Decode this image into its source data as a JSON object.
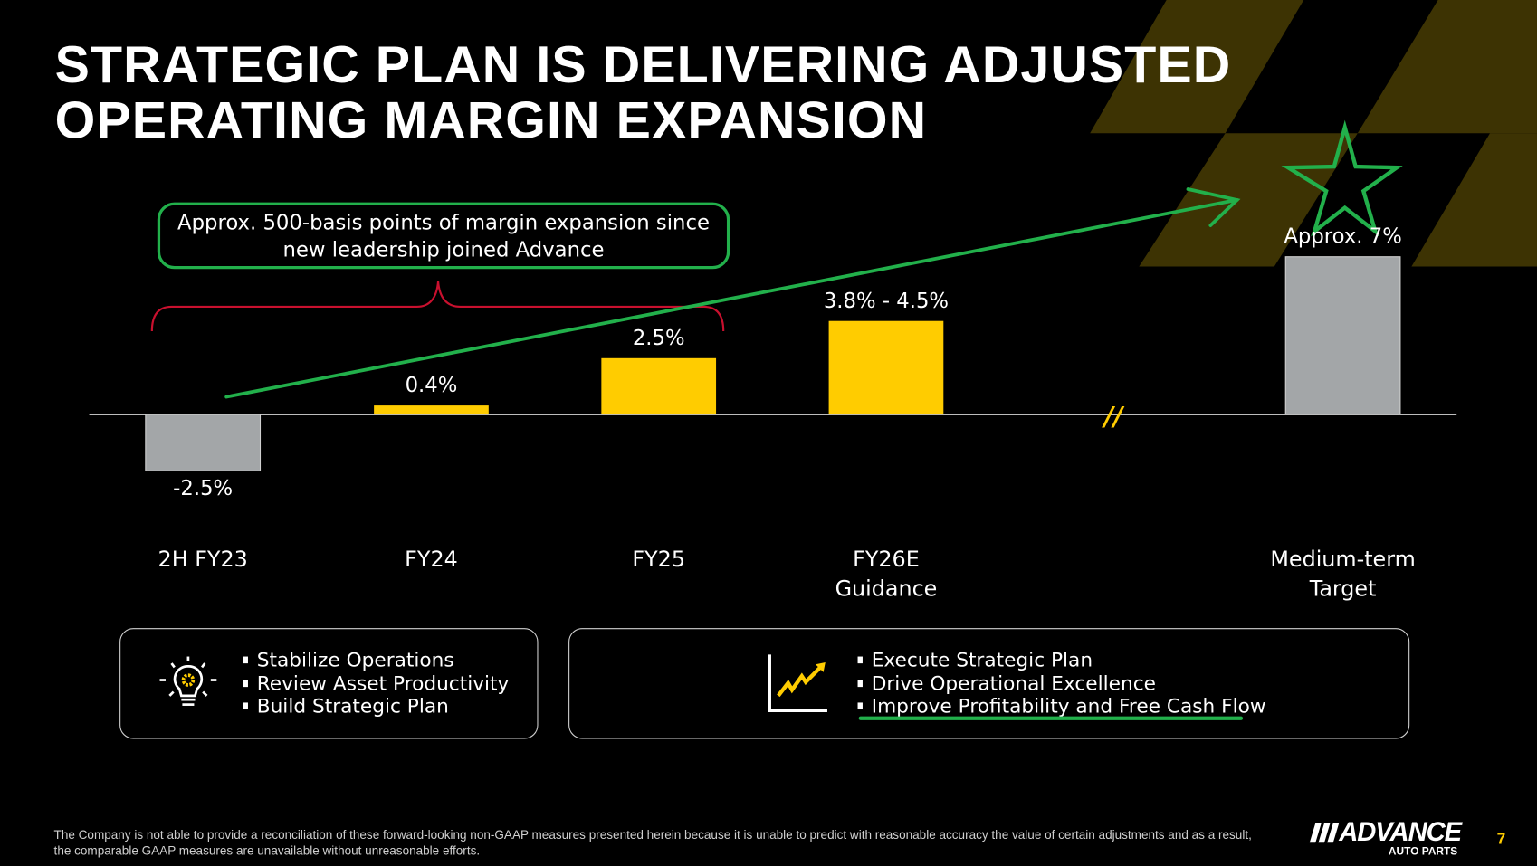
{
  "title": {
    "line1": "STRATEGIC PLAN IS DELIVERING ADJUSTED",
    "line2": "OPERATING MARGIN EXPANSION"
  },
  "callout": {
    "line1": "Approx. 500-basis points of margin expansion since",
    "line2": "new leadership joined Advance"
  },
  "colors": {
    "yellow": "#ffcc00",
    "gray": "#a3a6a8",
    "green": "#22b04b",
    "red": "#c8102e",
    "checker": "#3d3303"
  },
  "chart_data": {
    "type": "bar",
    "title": "Adjusted Operating Margin Expansion",
    "categories": [
      "2H FY23",
      "FY24",
      "FY25",
      "FY26E Guidance",
      "Medium-term Target"
    ],
    "category_lines": [
      [
        "2H FY23"
      ],
      [
        "FY24"
      ],
      [
        "FY25"
      ],
      [
        "FY26E",
        "Guidance"
      ],
      [
        "Medium-term",
        "Target"
      ]
    ],
    "values": [
      -2.5,
      0.4,
      2.5,
      4.15,
      7.0
    ],
    "data_labels": [
      "-2.5%",
      "0.4%",
      "2.5%",
      "3.8% - 4.5%",
      "Approx. 7%"
    ],
    "bar_colors": [
      "gray",
      "yellow",
      "yellow",
      "yellow",
      "gray"
    ],
    "axis_break": "//",
    "ylabel": "",
    "xlabel": "",
    "ylim": [
      -3,
      8
    ],
    "grid": false
  },
  "boxes": [
    {
      "icon": "lightbulb-gear-icon",
      "items": [
        "Stabilize Operations",
        "Review Asset Productivity",
        "Build Strategic Plan"
      ]
    },
    {
      "icon": "growth-chart-icon",
      "items": [
        "Execute Strategic Plan",
        "Drive Operational Excellence",
        "Improve Profitability and Free Cash Flow"
      ]
    }
  ],
  "footer": "The Company is not able to provide a reconciliation of these forward-looking non-GAAP measures presented herein because it is unable to predict with reasonable accuracy the value of certain adjustments and as a result, the comparable GAAP measures are unavailable without unreasonable efforts.",
  "logo": {
    "name": "ADVANCE",
    "sub": "AUTO PARTS"
  },
  "page_number": "7"
}
